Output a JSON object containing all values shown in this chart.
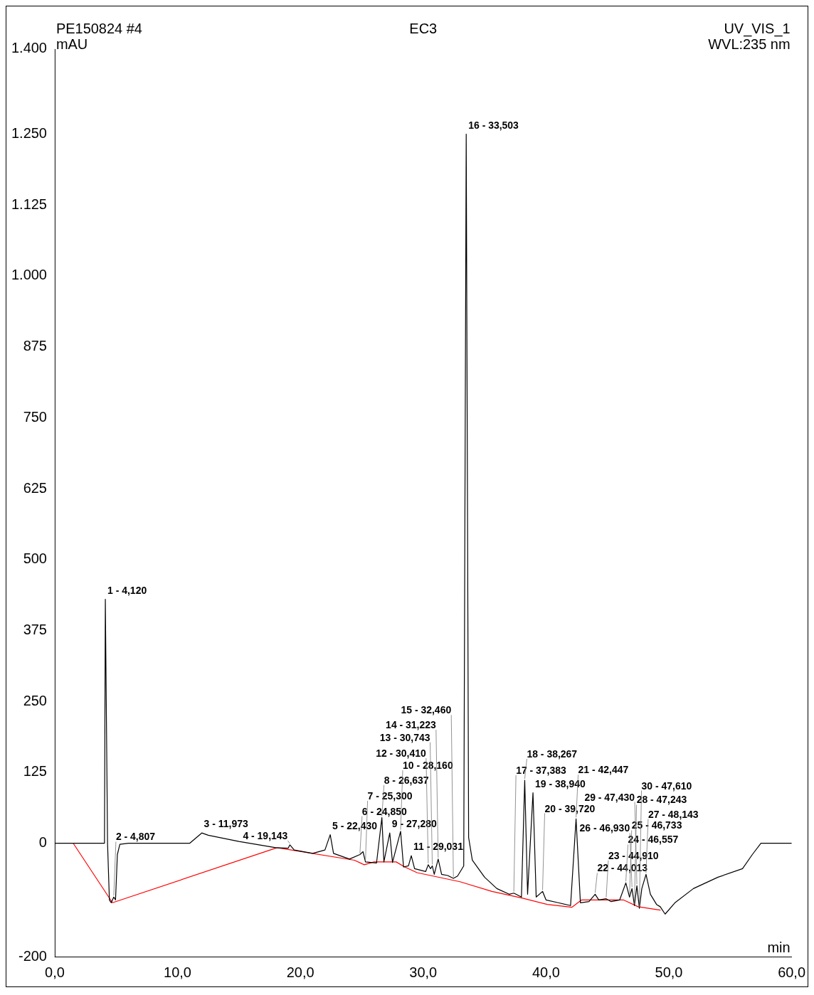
{
  "chart_data": {
    "type": "line",
    "title": "EC3",
    "xlabel": "min",
    "ylabel": "mAU",
    "xlim": [
      0,
      60
    ],
    "ylim": [
      -200,
      1400
    ],
    "xticks": [
      {
        "value": 0,
        "label": "0,0"
      },
      {
        "value": 10,
        "label": "10,0"
      },
      {
        "value": 20,
        "label": "20,0"
      },
      {
        "value": 30,
        "label": "30,0"
      },
      {
        "value": 40,
        "label": "40,0"
      },
      {
        "value": 50,
        "label": "50,0"
      },
      {
        "value": 60,
        "label": "60,0"
      }
    ],
    "yticks": [
      -200,
      0,
      125,
      250,
      375,
      500,
      625,
      750,
      875,
      {
        "value": 1000,
        "label": "1.000"
      },
      {
        "value": 1125,
        "label": "1.125"
      },
      {
        "value": 1250,
        "label": "1.250"
      },
      {
        "value": 1400,
        "label": "1.400"
      }
    ],
    "grid": false,
    "legend": false,
    "marker": "none",
    "line_style": "solid",
    "series": [
      {
        "color": "#000000",
        "x": [
          0,
          4.05,
          4.12,
          4.3,
          4.45,
          4.6,
          4.807,
          4.95,
          5.1,
          5.3,
          6,
          11,
          11.973,
          12.5,
          15,
          18,
          19,
          19.143,
          19.5,
          21,
          22,
          22.43,
          22.7,
          24,
          24.85,
          25.1,
          25.3,
          26.2,
          26.637,
          26.8,
          27.28,
          27.5,
          28.16,
          28.4,
          28.8,
          29.03,
          29.3,
          30.2,
          30.41,
          30.6,
          30.74,
          30.9,
          31.22,
          31.5,
          32,
          32.46,
          32.8,
          33.3,
          33.503,
          33.7,
          34,
          35,
          36,
          37,
          37.38,
          38,
          38.267,
          38.5,
          38.94,
          39.2,
          39.72,
          40,
          41,
          42,
          42.447,
          42.8,
          43.5,
          44,
          44.3,
          44.9,
          45.3,
          46,
          46.5,
          46.8,
          47,
          47.2,
          47.4,
          47.6,
          47.8,
          48.143,
          48.5,
          49,
          49.3,
          49.7,
          50.5,
          52,
          54,
          56,
          56.8,
          57.5,
          60
        ],
        "values": [
          0,
          0,
          430,
          0,
          -100,
          -105,
          -95,
          -100,
          -20,
          -2,
          0,
          0,
          18,
          14,
          3,
          -8,
          -9,
          -3,
          -12,
          -18,
          -12,
          15,
          -18,
          -28,
          -20,
          -15,
          -33,
          -35,
          45,
          -33,
          18,
          -34,
          21,
          -42,
          -40,
          -22,
          -45,
          -50,
          -38,
          -45,
          -40,
          -55,
          -28,
          -55,
          -57,
          -62,
          -58,
          -40,
          1250,
          10,
          -30,
          -60,
          -80,
          -90,
          -88,
          -95,
          111,
          -90,
          89,
          -95,
          -85,
          -100,
          -105,
          -110,
          43,
          -105,
          -103,
          -90,
          -100,
          -98,
          -103,
          -100,
          -70,
          -95,
          -80,
          -110,
          -75,
          -115,
          -80,
          -55,
          -90,
          -108,
          -112,
          -125,
          -105,
          -80,
          -60,
          -45,
          -20,
          0,
          0
        ]
      },
      {
        "color": "#ff0000",
        "x": [
          1.5,
          4.7,
          18.1,
          24.4,
          25.2,
          26,
          27.8,
          28.5,
          29.5,
          33,
          35.6,
          38.1,
          40.1,
          42.1,
          42.9,
          46.3,
          47.5,
          49.3
        ],
        "values": [
          0,
          -105,
          -8,
          -30,
          -38,
          -33,
          -33,
          -42,
          -52,
          -68,
          -85,
          -97,
          -108,
          -113,
          -100,
          -100,
          -112,
          -118
        ]
      }
    ],
    "annotations": [
      "PE150824 #4",
      "UV_VIS_1",
      "WVL:235 nm",
      {
        "text": "1 - 4,120",
        "x": 4.12,
        "y": 430
      },
      {
        "text": "2 - 4,807",
        "x": 4.807,
        "y": -95
      },
      {
        "text": "3 - 11,973",
        "x": 11.973,
        "y": 18
      },
      {
        "text": "4 - 19,143",
        "x": 19.143,
        "y": -3
      },
      {
        "text": "5 - 22,430",
        "x": 22.43,
        "y": 15
      },
      {
        "text": "6 - 24,850",
        "x": 24.85,
        "y": -20
      },
      {
        "text": "7 - 25,300",
        "x": 25.3,
        "y": -33
      },
      {
        "text": "8 - 26,637",
        "x": 26.637,
        "y": 45
      },
      {
        "text": "9 - 27,280",
        "x": 27.28,
        "y": 18
      },
      {
        "text": "10 - 28,160",
        "x": 28.16,
        "y": 21
      },
      {
        "text": "11 - 29,031",
        "x": 29.03,
        "y": -22
      },
      {
        "text": "12 - 30,410",
        "x": 30.41,
        "y": -38
      },
      {
        "text": "13 - 30,743",
        "x": 30.74,
        "y": -40
      },
      {
        "text": "14 - 31,223",
        "x": 31.22,
        "y": -28
      },
      {
        "text": "15 - 32,460",
        "x": 32.46,
        "y": -62
      },
      {
        "text": "16 - 33,503",
        "x": 33.503,
        "y": 1250
      },
      {
        "text": "17 - 37,383",
        "x": 37.38,
        "y": -88
      },
      {
        "text": "18 - 38,267",
        "x": 38.267,
        "y": 111
      },
      {
        "text": "19 - 38,940",
        "x": 38.94,
        "y": 89
      },
      {
        "text": "20 - 39,720",
        "x": 39.72,
        "y": -85
      },
      {
        "text": "21 - 42,447",
        "x": 42.447,
        "y": 43
      },
      {
        "text": "22 - 44,013",
        "x": 44,
        "y": -90
      },
      {
        "text": "23 - 44,910",
        "x": 44.9,
        "y": -98
      },
      {
        "text": "24 - 46,557",
        "x": 46.5,
        "y": -70
      },
      {
        "text": "25 - 46,733",
        "x": 46.8,
        "y": -95
      },
      {
        "text": "26 - 46,930",
        "x": 47,
        "y": -80
      },
      {
        "text": "27 - 48,143",
        "x": 48.143,
        "y": -55
      },
      {
        "text": "28 - 47,243",
        "x": 47.2,
        "y": -110
      },
      {
        "text": "29 - 47,430",
        "x": 47.4,
        "y": -75
      },
      {
        "text": "30 - 47,610",
        "x": 47.6,
        "y": -115
      }
    ]
  }
}
